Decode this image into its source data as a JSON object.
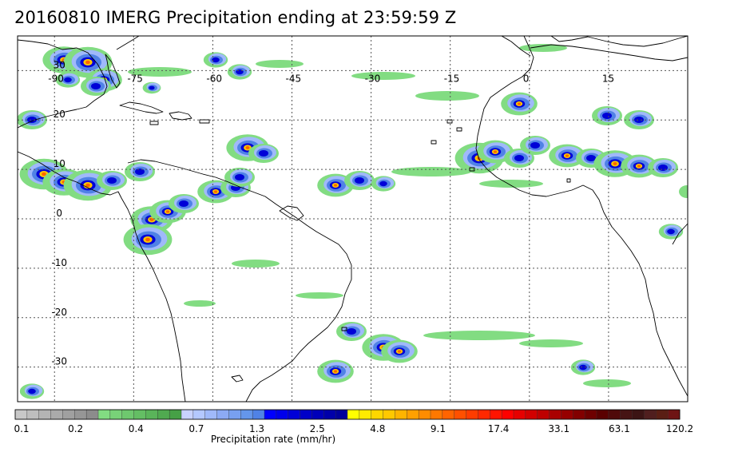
{
  "title": "20160810 IMERG Precipitation ending at 23:59:59 Z",
  "map": {
    "lon_range": [
      -97,
      30
    ],
    "lat_range": [
      -37,
      37
    ],
    "lon_gridlines": [
      -90,
      -75,
      -60,
      -45,
      -30,
      -15,
      0,
      15
    ],
    "lat_gridlines": [
      30,
      20,
      10,
      0,
      -10,
      -20,
      -30
    ],
    "lon_labels": [
      "-90",
      "-75",
      "-60",
      "-45",
      "-30",
      "-15",
      "0",
      "15"
    ],
    "lat_labels": [
      "30",
      "20",
      "10",
      "0",
      "-10",
      "-20",
      "-30"
    ],
    "grid": true
  },
  "colorbar": {
    "label": "Precipitation rate (mm/hr)",
    "tick_labels": [
      "0.1",
      "0.2",
      "0.4",
      "0.7",
      "1.3",
      "2.5",
      "4.8",
      "9.1",
      "17.4",
      "33.1",
      "63.1",
      "120.2"
    ],
    "colors": [
      "#c8c8c8",
      "#bebebe",
      "#b4b4b4",
      "#aaaaaa",
      "#a0a0a0",
      "#969696",
      "#8c8c8c",
      "#82dc82",
      "#78d278",
      "#6ec86e",
      "#64be64",
      "#5ab45a",
      "#50aa50",
      "#46a046",
      "#c8d2ff",
      "#b4c8ff",
      "#a0b9fa",
      "#8caaf5",
      "#78a0f0",
      "#6496eb",
      "#5082e6",
      "#0000ff",
      "#0000eb",
      "#0000d7",
      "#0000c8",
      "#0000b9",
      "#0000aa",
      "#00009b",
      "#ffff00",
      "#ffeb00",
      "#ffd700",
      "#ffc800",
      "#ffb400",
      "#ffa000",
      "#ff8c00",
      "#ff7800",
      "#ff6400",
      "#ff5000",
      "#ff3c00",
      "#ff2800",
      "#ff1400",
      "#ff0000",
      "#e60000",
      "#d20000",
      "#be0000",
      "#aa0000",
      "#960000",
      "#820000",
      "#6e0000",
      "#5a0000",
      "#500a0a",
      "#461414",
      "#3c1414",
      "#501e1e",
      "#5a1e14",
      "#6e1414"
    ]
  },
  "precip_palette": {
    "light": "#82dc82",
    "light2": "#a0b9fa",
    "moderate": "#5082e6",
    "heavy": "#0000d7",
    "very_heavy": "#ffc800",
    "extreme": "#ff6400"
  }
}
